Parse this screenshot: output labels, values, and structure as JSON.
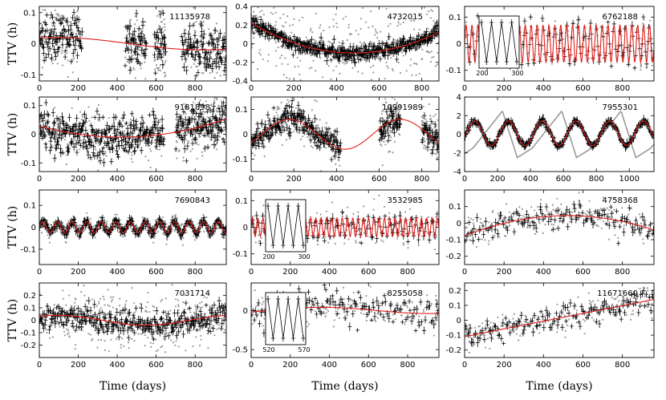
{
  "figure": {
    "ylabel": "TTV (h)",
    "xlabel": "Time (days)"
  },
  "chart_data": [
    {
      "type": "scatter",
      "id": "11135978",
      "xlim": [
        0,
        960
      ],
      "ylim": [
        -0.12,
        0.12
      ],
      "xticks": [
        0,
        200,
        400,
        600,
        800
      ],
      "yticks": [
        -0.1,
        0,
        0.1
      ],
      "ytick_labels": [
        "-0.1",
        "0",
        "0.1"
      ],
      "segments": [
        [
          0,
          220
        ],
        [
          440,
          550
        ],
        [
          590,
          650
        ],
        [
          730,
          960
        ]
      ],
      "scatter": 0.04,
      "gray_spread": 0.06,
      "model": {
        "kind": "sine",
        "amp": 0.02,
        "period": 1500,
        "phase": 1.2,
        "offset": 0
      },
      "binned": "none"
    },
    {
      "type": "scatter",
      "id": "4732015",
      "xlim": [
        0,
        880
      ],
      "ylim": [
        -0.4,
        0.4
      ],
      "xticks": [
        0,
        200,
        400,
        600,
        800
      ],
      "yticks": [
        -0.4,
        -0.2,
        0,
        0.2,
        0.4
      ],
      "ytick_labels": [
        "-0.4",
        "-0.2",
        "0",
        "0.2",
        "0.4"
      ],
      "segments": [
        [
          0,
          880
        ]
      ],
      "scatter": 0.04,
      "gray_spread": 0.25,
      "model": {
        "kind": "quad",
        "a": 1.4e-06,
        "xc": 480,
        "c": -0.1
      },
      "binned": "none"
    },
    {
      "type": "scatter",
      "id": "6762188",
      "xlim": [
        0,
        960
      ],
      "ylim": [
        -0.14,
        0.14
      ],
      "xticks": [
        0,
        200,
        400,
        600,
        800
      ],
      "yticks": [
        -0.1,
        0,
        0.1
      ],
      "ytick_labels": [
        "-0.1",
        "0",
        "0.1"
      ],
      "segments": [
        [
          0,
          960
        ]
      ],
      "scatter": 0.015,
      "gray_spread": 0.02,
      "model": {
        "kind": "sine",
        "amp": 0.07,
        "period": 30,
        "phase": 0,
        "offset": 0
      },
      "binned": "sparse",
      "inset": {
        "x_range": [
          200,
          300
        ],
        "tick_labels": [
          "200",
          "300"
        ]
      }
    },
    {
      "type": "scatter",
      "id": "9181898",
      "xlim": [
        0,
        960
      ],
      "ylim": [
        -0.13,
        0.13
      ],
      "xticks": [
        0,
        200,
        400,
        600,
        800
      ],
      "yticks": [
        -0.1,
        0,
        0.1
      ],
      "ytick_labels": [
        "-0.1",
        "0",
        "0.1"
      ],
      "segments": [
        [
          0,
          640
        ],
        [
          700,
          960
        ]
      ],
      "scatter": 0.035,
      "gray_spread": 0.05,
      "model": {
        "kind": "quad",
        "a": 2.2e-07,
        "xc": 420,
        "c": -0.01
      },
      "binned": "none"
    },
    {
      "type": "scatter",
      "id": "10991989",
      "xlim": [
        0,
        880
      ],
      "ylim": [
        -0.15,
        0.15
      ],
      "xticks": [
        0,
        200,
        400,
        600,
        800
      ],
      "yticks": [
        -0.1,
        0,
        0.1
      ],
      "ytick_labels": [
        "-0.1",
        "0",
        "0.1"
      ],
      "segments": [
        [
          0,
          420
        ],
        [
          600,
          700
        ],
        [
          800,
          880
        ]
      ],
      "scatter": 0.025,
      "gray_spread": 0.05,
      "model": {
        "kind": "sine",
        "amp": 0.06,
        "period": 520,
        "phase": -0.6,
        "offset": 0
      },
      "binned": "none"
    },
    {
      "type": "line",
      "id": "7955301",
      "xlim": [
        0,
        1150
      ],
      "ylim": [
        -4,
        4
      ],
      "xticks": [
        0,
        200,
        400,
        600,
        800,
        1000
      ],
      "yticks": [
        -4,
        -2,
        0,
        2,
        4
      ],
      "ytick_labels": [
        "-4",
        "-2",
        "0",
        "2",
        "4"
      ],
      "segments": [
        [
          0,
          1150
        ]
      ],
      "scatter": 0.15,
      "gray_spread": 0,
      "model": {
        "kind": "sine",
        "amp": 1.3,
        "period": 205,
        "phase": -0.3,
        "offset": 0.1
      },
      "binned": "dense",
      "secondary_gray": {
        "kind": "sawtooth",
        "amp": 2.5,
        "period": 360
      }
    },
    {
      "type": "scatter",
      "id": "7690843",
      "xlim": [
        0,
        960
      ],
      "ylim": [
        -0.17,
        0.17
      ],
      "xticks": [
        0,
        200,
        400,
        600,
        800
      ],
      "yticks": [
        -0.1,
        0,
        0.1
      ],
      "ytick_labels": [
        "-0.1",
        "0",
        "0.1"
      ],
      "segments": [
        [
          0,
          960
        ]
      ],
      "scatter": 0.01,
      "gray_spread": 0.02,
      "model": {
        "kind": "sine",
        "amp": 0.025,
        "period": 75,
        "phase": 0,
        "offset": 0
      },
      "binned": "dense"
    },
    {
      "type": "scatter",
      "id": "3532985",
      "xlim": [
        0,
        960
      ],
      "ylim": [
        -0.14,
        0.14
      ],
      "xticks": [
        0,
        200,
        400,
        600,
        800
      ],
      "yticks": [
        -0.1,
        0,
        0.1
      ],
      "ytick_labels": [
        "-0.1",
        "0",
        "0.1"
      ],
      "segments": [
        [
          0,
          960
        ]
      ],
      "scatter": 0.015,
      "gray_spread": 0.03,
      "model": {
        "kind": "sine",
        "amp": 0.035,
        "period": 27,
        "phase": 0,
        "offset": 0
      },
      "binned": "sparse",
      "inset": {
        "x_range": [
          200,
          300
        ],
        "tick_labels": [
          "200",
          "300"
        ]
      }
    },
    {
      "type": "scatter",
      "id": "4758368",
      "xlim": [
        0,
        960
      ],
      "ylim": [
        -0.25,
        0.2
      ],
      "xticks": [
        0,
        200,
        400,
        600,
        800
      ],
      "yticks": [
        -0.2,
        -0.1,
        0,
        0.1
      ],
      "ytick_labels": [
        "-0.2",
        "-0.1",
        "0",
        "0.1"
      ],
      "segments": [
        [
          0,
          960
        ]
      ],
      "scatter": 0.04,
      "gray_spread": 0.05,
      "model": {
        "kind": "quad",
        "a": -4.5e-07,
        "xc": 520,
        "c": 0.045
      },
      "binned": "sparse"
    },
    {
      "type": "scatter",
      "id": "7031714",
      "xlim": [
        0,
        960
      ],
      "ylim": [
        -0.3,
        0.3
      ],
      "xticks": [
        0,
        200,
        400,
        600,
        800
      ],
      "yticks": [
        -0.2,
        -0.1,
        0,
        0.1,
        0.2
      ],
      "ytick_labels": [
        "-0.2",
        "-0.1",
        "0",
        "0.1",
        "0.2"
      ],
      "segments": [
        [
          0,
          960
        ]
      ],
      "scatter": 0.05,
      "gray_spread": 0.12,
      "model": {
        "kind": "sine",
        "amp": 0.04,
        "period": 900,
        "phase": 0.9,
        "offset": 0
      },
      "binned": "dense"
    },
    {
      "type": "scatter",
      "id": "8255058",
      "xlim": [
        0,
        960
      ],
      "ylim": [
        -0.6,
        0.35
      ],
      "xticks": [
        0,
        200,
        400,
        600,
        800
      ],
      "yticks": [
        -0.5,
        0
      ],
      "ytick_labels": [
        "-0.5",
        "0"
      ],
      "segments": [
        [
          0,
          960
        ]
      ],
      "scatter": 0.1,
      "gray_spread": 0.1,
      "model": {
        "kind": "sine",
        "amp": 0.04,
        "period": 1100,
        "phase": -0.5,
        "offset": 0
      },
      "binned": "sparse",
      "inset": {
        "x_range": [
          520,
          570
        ],
        "tick_labels": [
          "520",
          "570"
        ]
      }
    },
    {
      "type": "scatter",
      "id": "11671660",
      "xlim": [
        0,
        960
      ],
      "ylim": [
        -0.25,
        0.25
      ],
      "xticks": [
        0,
        200,
        400,
        600,
        800
      ],
      "yticks": [
        -0.2,
        -0.1,
        0,
        0.1,
        0.2
      ],
      "ytick_labels": [
        "-0.2",
        "-0.1",
        "0",
        "0.1",
        "0.2"
      ],
      "segments": [
        [
          0,
          960
        ]
      ],
      "scatter": 0.04,
      "gray_spread": 0.05,
      "model": {
        "kind": "linear",
        "slope": 0.00026,
        "intercept": -0.11
      },
      "binned": "sparse"
    }
  ],
  "colors": {
    "model": "#e0201c",
    "points": "#000000",
    "gray": "#9a9a9a",
    "axes": "#000000"
  }
}
